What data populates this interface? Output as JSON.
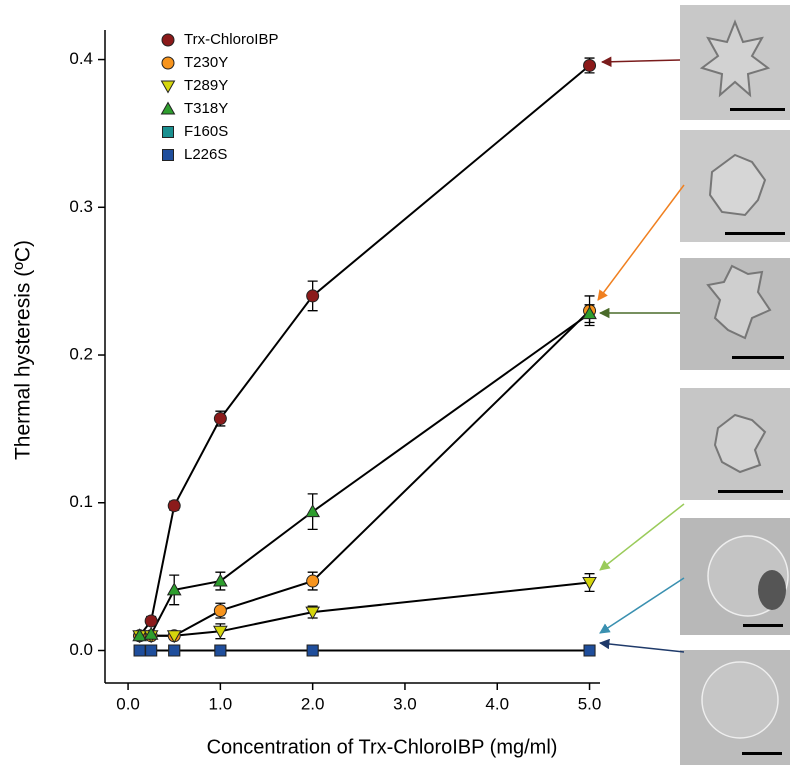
{
  "chart_data": {
    "type": "line",
    "x_label": "Concentration of Trx-ChloroIBP (mg/ml)",
    "y_label": "Thermal hysteresis (ºC)",
    "x": [
      0.125,
      0.25,
      0.5,
      1.0,
      2.0,
      5.0
    ],
    "xlim": [
      -0.25,
      5.2
    ],
    "ylim": [
      -0.022,
      0.42
    ],
    "xticks": [
      {
        "value": 0,
        "label": "0.0"
      },
      {
        "value": 1,
        "label": "1.0"
      },
      {
        "value": 2,
        "label": "2.0"
      },
      {
        "value": 3,
        "label": "3.0"
      },
      {
        "value": 4,
        "label": "4.0"
      },
      {
        "value": 5,
        "label": "5.0"
      }
    ],
    "yticks": [
      {
        "value": 0,
        "label": "0.0"
      },
      {
        "value": 0.1,
        "label": "0.1"
      },
      {
        "value": 0.2,
        "label": "0.2"
      },
      {
        "value": 0.3,
        "label": "0.3"
      },
      {
        "value": 0.4,
        "label": "0.4"
      }
    ],
    "legend": "upper left",
    "series": [
      {
        "name": "Trx-ChloroIBP",
        "color": "#8b1a1a",
        "marker": "circle",
        "values": [
          0.01,
          0.02,
          0.098,
          0.157,
          0.24,
          0.396
        ],
        "errors": [
          0,
          0.003,
          0.003,
          0.005,
          0.01,
          0.005
        ]
      },
      {
        "name": "T230Y",
        "color": "#f7941d",
        "marker": "circle",
        "values": [
          0.01,
          0.01,
          0.01,
          0.027,
          0.047,
          0.23
        ],
        "errors": [
          0,
          0,
          0,
          0.005,
          0.006,
          0.01
        ]
      },
      {
        "name": "T289Y",
        "color": "#d6d60c",
        "marker": "triangle-down",
        "values": [
          0.01,
          0.01,
          0.01,
          0.013,
          0.026,
          0.046
        ],
        "errors": [
          0,
          0,
          0,
          0.005,
          0.004,
          0.006
        ]
      },
      {
        "name": "T318Y",
        "color": "#2e9e2e",
        "marker": "triangle-up",
        "values": [
          0.01,
          0.011,
          0.041,
          0.047,
          0.094,
          0.228
        ],
        "errors": [
          0,
          0,
          0.01,
          0.006,
          0.012,
          0.006
        ]
      },
      {
        "name": "F160S",
        "color": "#1a9090",
        "marker": "square",
        "values": [
          0,
          0,
          0,
          0,
          0,
          0
        ],
        "errors": [
          0,
          0,
          0,
          0,
          0,
          0
        ]
      },
      {
        "name": "L226S",
        "color": "#1f4e9c",
        "marker": "square",
        "values": [
          0,
          0,
          0,
          0,
          0,
          0
        ],
        "errors": [
          0,
          0,
          0,
          0,
          0,
          0
        ]
      }
    ]
  }
}
